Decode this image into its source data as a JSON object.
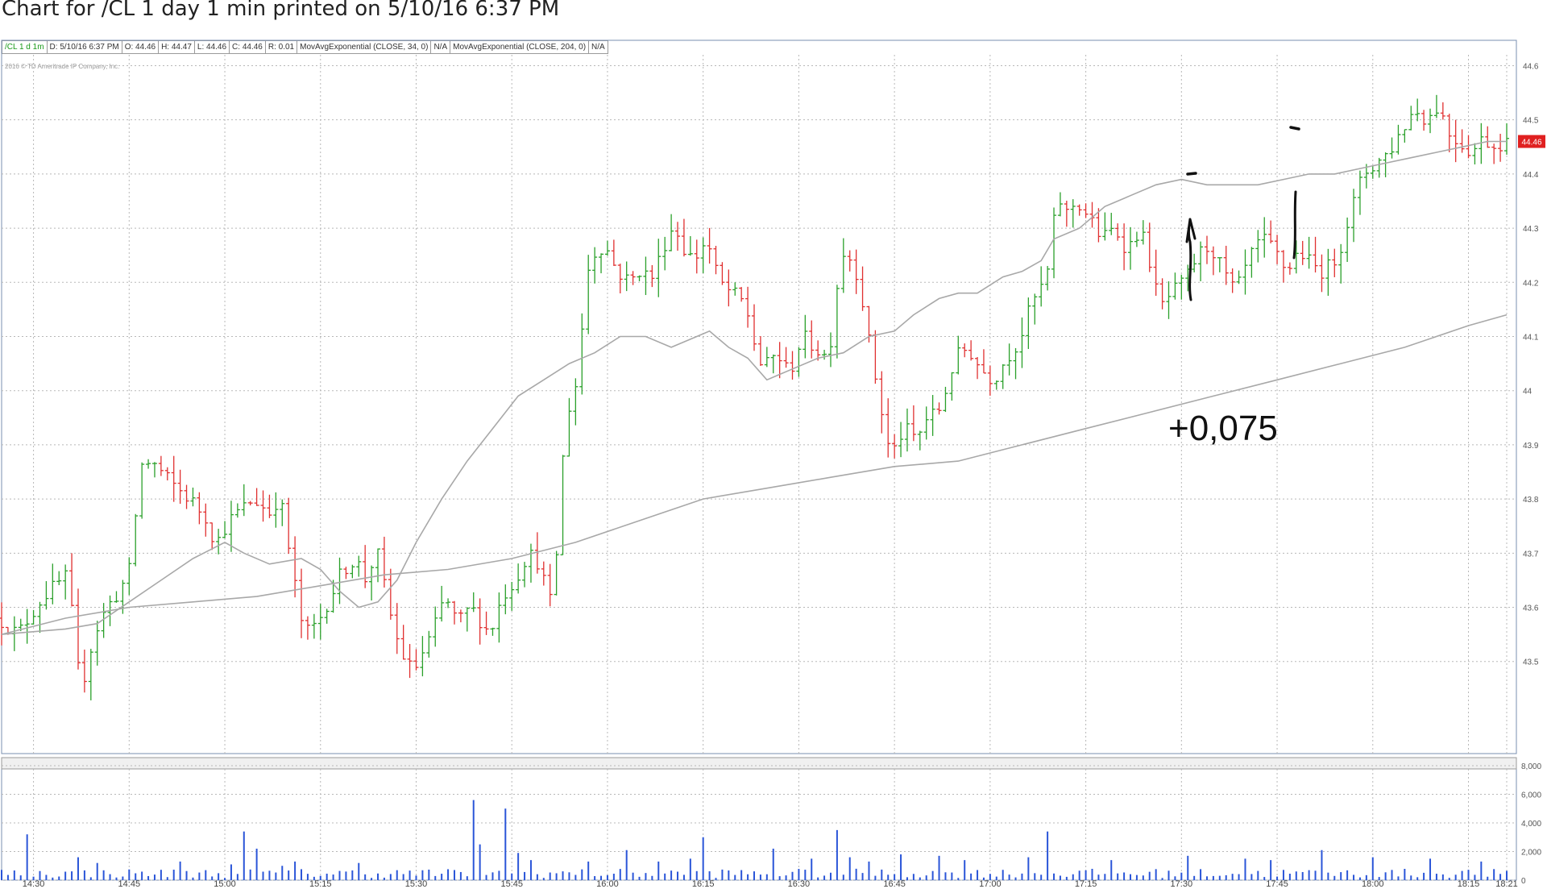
{
  "title": "Chart for /CL 1 day 1 min printed on 5/10/16 6:37 PM",
  "info_bar": [
    "/CL 1 d 1m",
    "D: 5/10/16 6:37 PM",
    "O: 44.46",
    "H: 44.47",
    "L: 44.46",
    "C: 44.46",
    "R: 0.01",
    "MovAvgExponential (CLOSE, 34, 0)",
    "N/A",
    "MovAvgExponential (CLOSE, 204, 0)",
    "N/A"
  ],
  "copyright": "2016 © TD Ameritrade IP Company, Inc.",
  "annotation": "+0,075",
  "last_price_label": "44.46",
  "colors": {
    "up": "#2aa02a",
    "down": "#e03030",
    "ma": "#a8a8a8",
    "volume": "#2a55d8",
    "grid": "#b8b8b8",
    "last_price": "#e02020"
  },
  "chart_data": {
    "type": "ohlc",
    "symbol": "/CL",
    "aggregation": "1 min",
    "price_ylim": [
      43.33,
      44.62
    ],
    "price_ticks": [
      "44.6",
      "44.5",
      "44.4",
      "44.3",
      "44.2",
      "44.1",
      "44",
      "43.9",
      "43.8",
      "43.7",
      "43.6",
      "43.5"
    ],
    "volume_ylim": [
      0,
      8000
    ],
    "volume_ticks": [
      "8,000",
      "6,000",
      "4,000",
      "2,000",
      "0"
    ],
    "x_ticks": [
      "14:30",
      "14:45",
      "15:00",
      "15:15",
      "15:30",
      "15:45",
      "16:00",
      "16:15",
      "16:30",
      "16:45",
      "17:00",
      "17:15",
      "17:30",
      "17:45",
      "18:00",
      "18:15",
      "18:21"
    ],
    "time_range_minutes": [
      865,
      1101
    ],
    "price_path": [
      [
        865,
        43.58
      ],
      [
        868,
        43.55
      ],
      [
        872,
        43.62
      ],
      [
        876,
        43.66
      ],
      [
        877,
        43.52
      ],
      [
        878,
        43.45
      ],
      [
        880,
        43.55
      ],
      [
        882,
        43.6
      ],
      [
        884,
        43.63
      ],
      [
        886,
        43.68
      ],
      [
        887,
        43.86
      ],
      [
        889,
        43.87
      ],
      [
        892,
        43.83
      ],
      [
        895,
        43.8
      ],
      [
        898,
        43.76
      ],
      [
        899,
        43.71
      ],
      [
        900,
        43.74
      ],
      [
        902,
        43.77
      ],
      [
        905,
        43.8
      ],
      [
        908,
        43.77
      ],
      [
        909,
        43.82
      ],
      [
        910,
        43.74
      ],
      [
        911,
        43.68
      ],
      [
        912,
        43.6
      ],
      [
        913,
        43.55
      ],
      [
        915,
        43.57
      ],
      [
        917,
        43.62
      ],
      [
        919,
        43.67
      ],
      [
        921,
        43.69
      ],
      [
        923,
        43.64
      ],
      [
        924,
        43.72
      ],
      [
        925,
        43.67
      ],
      [
        926,
        43.61
      ],
      [
        927,
        43.56
      ],
      [
        928,
        43.52
      ],
      [
        930,
        43.48
      ],
      [
        933,
        43.55
      ],
      [
        935,
        43.62
      ],
      [
        937,
        43.57
      ],
      [
        939,
        43.6
      ],
      [
        941,
        43.57
      ],
      [
        942,
        43.55
      ],
      [
        944,
        43.62
      ],
      [
        946,
        43.65
      ],
      [
        948,
        43.7
      ],
      [
        950,
        43.68
      ],
      [
        951,
        43.62
      ],
      [
        952,
        43.6
      ],
      [
        953,
        43.8
      ],
      [
        954,
        43.95
      ],
      [
        956,
        44.03
      ],
      [
        957,
        44.2
      ],
      [
        958,
        44.25
      ],
      [
        960,
        44.27
      ],
      [
        962,
        44.22
      ],
      [
        964,
        44.2
      ],
      [
        966,
        44.23
      ],
      [
        967,
        44.2
      ],
      [
        968,
        44.22
      ],
      [
        969,
        44.26
      ],
      [
        971,
        44.31
      ],
      [
        972,
        44.27
      ],
      [
        974,
        44.24
      ],
      [
        976,
        44.28
      ],
      [
        978,
        44.2
      ],
      [
        980,
        44.18
      ],
      [
        982,
        44.16
      ],
      [
        983,
        44.12
      ],
      [
        984,
        44.06
      ],
      [
        985,
        44.04
      ],
      [
        987,
        44.07
      ],
      [
        989,
        44.03
      ],
      [
        991,
        44.1
      ],
      [
        993,
        44.08
      ],
      [
        995,
        44.06
      ],
      [
        996,
        44.13
      ],
      [
        997,
        44.26
      ],
      [
        999,
        44.24
      ],
      [
        1000,
        44.2
      ],
      [
        1001,
        44.13
      ],
      [
        1002,
        44.05
      ],
      [
        1003,
        44.0
      ],
      [
        1004,
        43.92
      ],
      [
        1005,
        43.88
      ],
      [
        1007,
        43.93
      ],
      [
        1009,
        43.91
      ],
      [
        1011,
        43.96
      ],
      [
        1012,
        43.95
      ],
      [
        1013,
        43.98
      ],
      [
        1015,
        44.06
      ],
      [
        1017,
        44.08
      ],
      [
        1019,
        44.04
      ],
      [
        1021,
        44.02
      ],
      [
        1023,
        44.06
      ],
      [
        1025,
        44.09
      ],
      [
        1027,
        44.16
      ],
      [
        1029,
        44.2
      ],
      [
        1030,
        44.24
      ],
      [
        1031,
        44.38
      ],
      [
        1032,
        44.32
      ],
      [
        1034,
        44.35
      ],
      [
        1036,
        44.32
      ],
      [
        1038,
        44.28
      ],
      [
        1040,
        44.3
      ],
      [
        1042,
        44.26
      ],
      [
        1044,
        44.3
      ],
      [
        1046,
        44.22
      ],
      [
        1047,
        44.15
      ],
      [
        1049,
        44.18
      ],
      [
        1051,
        44.2
      ],
      [
        1053,
        44.25
      ],
      [
        1055,
        44.27
      ],
      [
        1057,
        44.22
      ],
      [
        1059,
        44.18
      ],
      [
        1061,
        44.24
      ],
      [
        1063,
        44.28
      ],
      [
        1065,
        44.26
      ],
      [
        1067,
        44.22
      ],
      [
        1069,
        44.26
      ],
      [
        1071,
        44.23
      ],
      [
        1073,
        44.22
      ],
      [
        1075,
        44.25
      ],
      [
        1077,
        44.33
      ],
      [
        1079,
        44.4
      ],
      [
        1081,
        44.42
      ],
      [
        1083,
        44.44
      ],
      [
        1085,
        44.48
      ],
      [
        1087,
        44.52
      ],
      [
        1089,
        44.5
      ],
      [
        1091,
        44.53
      ],
      [
        1092,
        44.48
      ],
      [
        1094,
        44.46
      ],
      [
        1096,
        44.44
      ],
      [
        1098,
        44.47
      ],
      [
        1099,
        44.45
      ],
      [
        1101,
        44.46
      ]
    ],
    "ema_34": [
      [
        865,
        43.55
      ],
      [
        875,
        43.56
      ],
      [
        880,
        43.57
      ],
      [
        885,
        43.61
      ],
      [
        890,
        43.65
      ],
      [
        895,
        43.69
      ],
      [
        900,
        43.72
      ],
      [
        903,
        43.7
      ],
      [
        907,
        43.68
      ],
      [
        912,
        43.69
      ],
      [
        915,
        43.67
      ],
      [
        918,
        43.63
      ],
      [
        921,
        43.6
      ],
      [
        924,
        43.61
      ],
      [
        927,
        43.65
      ],
      [
        930,
        43.72
      ],
      [
        934,
        43.8
      ],
      [
        938,
        43.87
      ],
      [
        942,
        43.93
      ],
      [
        946,
        43.99
      ],
      [
        950,
        44.02
      ],
      [
        954,
        44.05
      ],
      [
        958,
        44.07
      ],
      [
        962,
        44.1
      ],
      [
        966,
        44.1
      ],
      [
        970,
        44.08
      ],
      [
        974,
        44.1
      ],
      [
        976,
        44.11
      ],
      [
        979,
        44.08
      ],
      [
        982,
        44.06
      ],
      [
        985,
        44.02
      ],
      [
        987,
        44.03
      ],
      [
        989,
        44.04
      ],
      [
        993,
        44.06
      ],
      [
        997,
        44.07
      ],
      [
        1001,
        44.1
      ],
      [
        1005,
        44.11
      ],
      [
        1008,
        44.14
      ],
      [
        1012,
        44.17
      ],
      [
        1015,
        44.18
      ],
      [
        1018,
        44.18
      ],
      [
        1022,
        44.21
      ],
      [
        1025,
        44.22
      ],
      [
        1028,
        44.24
      ],
      [
        1030,
        44.28
      ],
      [
        1034,
        44.3
      ],
      [
        1038,
        44.34
      ],
      [
        1042,
        44.36
      ],
      [
        1046,
        44.38
      ],
      [
        1050,
        44.39
      ],
      [
        1054,
        44.38
      ],
      [
        1058,
        44.38
      ],
      [
        1062,
        44.38
      ],
      [
        1066,
        44.39
      ],
      [
        1070,
        44.4
      ],
      [
        1074,
        44.4
      ],
      [
        1078,
        44.41
      ],
      [
        1082,
        44.42
      ],
      [
        1086,
        44.43
      ],
      [
        1090,
        44.44
      ],
      [
        1094,
        44.45
      ],
      [
        1098,
        44.46
      ],
      [
        1101,
        44.46
      ]
    ],
    "ema_204": [
      [
        865,
        43.55
      ],
      [
        875,
        43.58
      ],
      [
        885,
        43.6
      ],
      [
        895,
        43.61
      ],
      [
        905,
        43.62
      ],
      [
        915,
        43.64
      ],
      [
        925,
        43.66
      ],
      [
        935,
        43.67
      ],
      [
        945,
        43.69
      ],
      [
        955,
        43.72
      ],
      [
        965,
        43.76
      ],
      [
        975,
        43.8
      ],
      [
        985,
        43.82
      ],
      [
        995,
        43.84
      ],
      [
        1005,
        43.86
      ],
      [
        1015,
        43.87
      ],
      [
        1025,
        43.9
      ],
      [
        1035,
        43.93
      ],
      [
        1045,
        43.96
      ],
      [
        1055,
        43.99
      ],
      [
        1065,
        44.02
      ],
      [
        1075,
        44.05
      ],
      [
        1085,
        44.08
      ],
      [
        1095,
        44.12
      ],
      [
        1101,
        44.14
      ]
    ],
    "volume_spikes": [
      [
        869,
        3200
      ],
      [
        877,
        1600
      ],
      [
        880,
        1200
      ],
      [
        893,
        1300
      ],
      [
        901,
        1100
      ],
      [
        903,
        3400
      ],
      [
        905,
        2200
      ],
      [
        909,
        1000
      ],
      [
        911,
        1300
      ],
      [
        921,
        1200
      ],
      [
        939,
        5600
      ],
      [
        940,
        2500
      ],
      [
        944,
        5000
      ],
      [
        946,
        1900
      ],
      [
        948,
        1400
      ],
      [
        957,
        1300
      ],
      [
        963,
        2100
      ],
      [
        968,
        1300
      ],
      [
        973,
        1500
      ],
      [
        975,
        3000
      ],
      [
        986,
        2200
      ],
      [
        992,
        1500
      ],
      [
        996,
        3500
      ],
      [
        998,
        1600
      ],
      [
        1001,
        1300
      ],
      [
        1006,
        1800
      ],
      [
        1012,
        1700
      ],
      [
        1016,
        1400
      ],
      [
        1026,
        1600
      ],
      [
        1029,
        3400
      ],
      [
        1039,
        1400
      ],
      [
        1051,
        1700
      ],
      [
        1060,
        1500
      ],
      [
        1064,
        1400
      ],
      [
        1072,
        2100
      ],
      [
        1080,
        1600
      ],
      [
        1089,
        1500
      ],
      [
        1097,
        1300
      ]
    ]
  }
}
